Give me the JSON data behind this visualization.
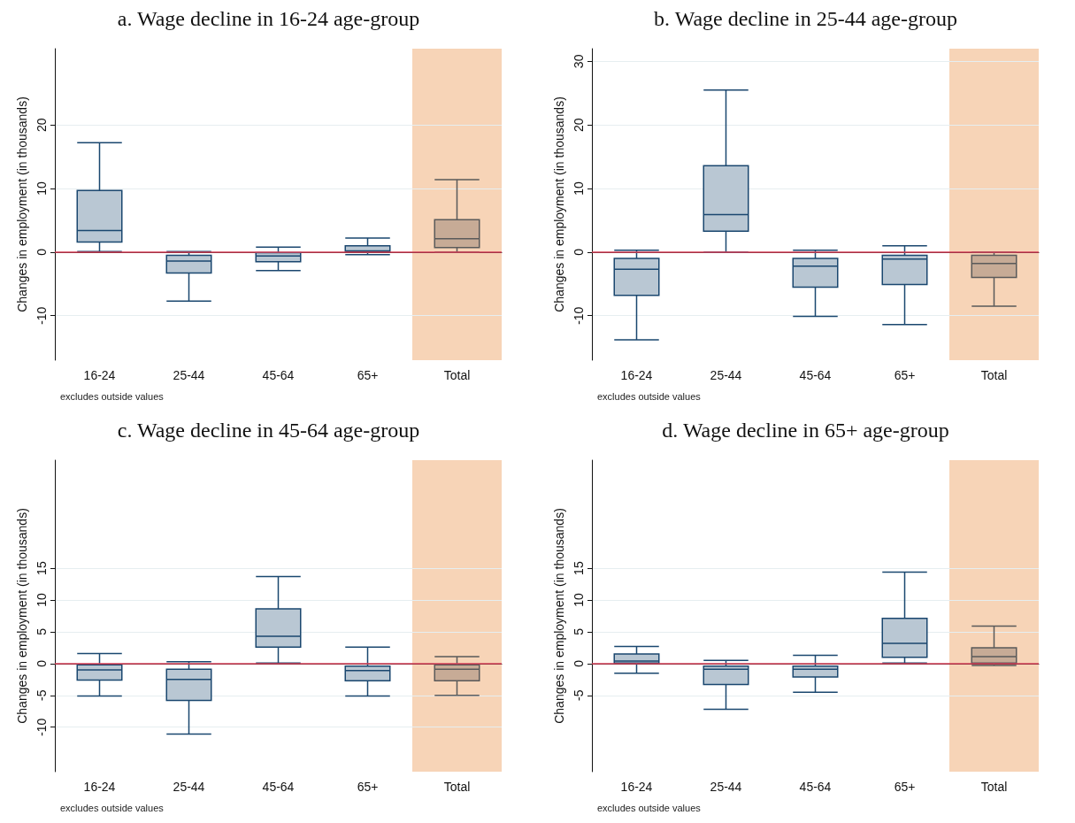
{
  "chart_data": [
    {
      "type": "box",
      "title": "a. Wage decline in 16-24 age-group",
      "ylabel": "Changes in employment (in thousands)",
      "categories": [
        "16-24",
        "25-44",
        "45-64",
        "65+",
        "Total"
      ],
      "ylim": [
        -17,
        32
      ],
      "yticks": [
        -10,
        0,
        10,
        20
      ],
      "grid": "y",
      "colors": [
        "#b9c7d3",
        "#b9c7d3",
        "#b9c7d3",
        "#b9c7d3",
        "#c7ab96"
      ],
      "boxes": [
        {
          "low": 0.1,
          "q1": 1.6,
          "median": 3.4,
          "q3": 9.7,
          "high": 17.2
        },
        {
          "low": -7.7,
          "q1": -3.3,
          "median": -1.4,
          "q3": -0.5,
          "high": 0.1
        },
        {
          "low": -2.9,
          "q1": -1.5,
          "median": -0.6,
          "q3": -0.1,
          "high": 0.8
        },
        {
          "low": -0.4,
          "q1": 0.1,
          "median": 0.2,
          "q3": 1.0,
          "high": 2.2
        },
        {
          "low": 0,
          "q1": 0.7,
          "median": 2.1,
          "q3": 5.1,
          "high": 11.4
        }
      ],
      "ref_lines": [
        {
          "axis": "y",
          "value": 0,
          "color": "#d63f57"
        }
      ],
      "bands": [
        {
          "axis": "x",
          "from": "Total",
          "to": "Total",
          "color": "#f7d4b7"
        }
      ],
      "annotations": [
        "excludes outside values"
      ]
    },
    {
      "type": "box",
      "title": "b. Wage decline in 25-44 age-group",
      "ylabel": "Changes in employment (in thousands)",
      "categories": [
        "16-24",
        "25-44",
        "45-64",
        "65+",
        "Total"
      ],
      "ylim": [
        -17,
        32
      ],
      "yticks": [
        -10,
        0,
        10,
        20,
        30
      ],
      "grid": "y",
      "colors": [
        "#b9c7d3",
        "#b9c7d3",
        "#b9c7d3",
        "#b9c7d3",
        "#c7ab96"
      ],
      "boxes": [
        {
          "low": -13.8,
          "q1": -6.8,
          "median": -2.7,
          "q3": -1.0,
          "high": 0.3
        },
        {
          "low": 0,
          "q1": 3.3,
          "median": 5.9,
          "q3": 13.6,
          "high": 25.5
        },
        {
          "low": -10.1,
          "q1": -5.5,
          "median": -2.2,
          "q3": -1.0,
          "high": 0.3
        },
        {
          "low": -11.4,
          "q1": -5.1,
          "median": -1.1,
          "q3": -0.5,
          "high": 1.0
        },
        {
          "low": -8.5,
          "q1": -4.0,
          "median": -1.8,
          "q3": -0.5,
          "high": 0
        }
      ],
      "ref_lines": [
        {
          "axis": "y",
          "value": 0,
          "color": "#d63f57"
        }
      ],
      "bands": [
        {
          "axis": "x",
          "from": "Total",
          "to": "Total",
          "color": "#f7d4b7"
        }
      ],
      "annotations": [
        "excludes outside values"
      ]
    },
    {
      "type": "box",
      "title": "c. Wage decline in 45-64 age-group",
      "ylabel": "Changes in employment (in thousands)",
      "categories": [
        "16-24",
        "25-44",
        "45-64",
        "65+",
        "Total"
      ],
      "ylim": [
        -17,
        32
      ],
      "yticks": [
        -10,
        -5,
        0,
        5,
        10,
        15
      ],
      "grid": "y",
      "colors": [
        "#b9c7d3",
        "#b9c7d3",
        "#b9c7d3",
        "#b9c7d3",
        "#c7ab96"
      ],
      "boxes": [
        {
          "low": -5.1,
          "q1": -2.6,
          "median": -1.0,
          "q3": -0.2,
          "high": 1.6
        },
        {
          "low": -11.1,
          "q1": -5.8,
          "median": -2.5,
          "q3": -0.9,
          "high": 0.3
        },
        {
          "low": 0.1,
          "q1": 2.6,
          "median": 4.3,
          "q3": 8.6,
          "high": 13.7
        },
        {
          "low": -5.1,
          "q1": -2.7,
          "median": -1.1,
          "q3": -0.4,
          "high": 2.6
        },
        {
          "low": -5.0,
          "q1": -2.7,
          "median": -0.9,
          "q3": -0.2,
          "high": 1.1
        }
      ],
      "ref_lines": [
        {
          "axis": "y",
          "value": 0,
          "color": "#d63f57"
        }
      ],
      "bands": [
        {
          "axis": "x",
          "from": "Total",
          "to": "Total",
          "color": "#f7d4b7"
        }
      ],
      "annotations": [
        "excludes outside values"
      ]
    },
    {
      "type": "box",
      "title": "d. Wage decline in 65+ age-group",
      "ylabel": "Changes in employment (in thousands)",
      "categories": [
        "16-24",
        "25-44",
        "45-64",
        "65+",
        "Total"
      ],
      "ylim": [
        -17,
        32
      ],
      "yticks": [
        -5,
        0,
        5,
        10,
        15
      ],
      "grid": "y",
      "colors": [
        "#b9c7d3",
        "#b9c7d3",
        "#b9c7d3",
        "#b9c7d3",
        "#c7ab96"
      ],
      "boxes": [
        {
          "low": -1.5,
          "q1": 0.1,
          "median": 0.4,
          "q3": 1.5,
          "high": 2.7
        },
        {
          "low": -7.2,
          "q1": -3.3,
          "median": -0.9,
          "q3": -0.4,
          "high": 0.5
        },
        {
          "low": -4.5,
          "q1": -2.1,
          "median": -0.9,
          "q3": -0.4,
          "high": 1.3
        },
        {
          "low": 0.1,
          "q1": 1.0,
          "median": 3.2,
          "q3": 7.1,
          "high": 14.4
        },
        {
          "low": -0.3,
          "q1": 0.1,
          "median": 1.1,
          "q3": 2.5,
          "high": 5.9
        }
      ],
      "ref_lines": [
        {
          "axis": "y",
          "value": 0,
          "color": "#d63f57"
        }
      ],
      "bands": [
        {
          "axis": "x",
          "from": "Total",
          "to": "Total",
          "color": "#f7d4b7"
        }
      ],
      "annotations": [
        "excludes outside values"
      ]
    }
  ]
}
